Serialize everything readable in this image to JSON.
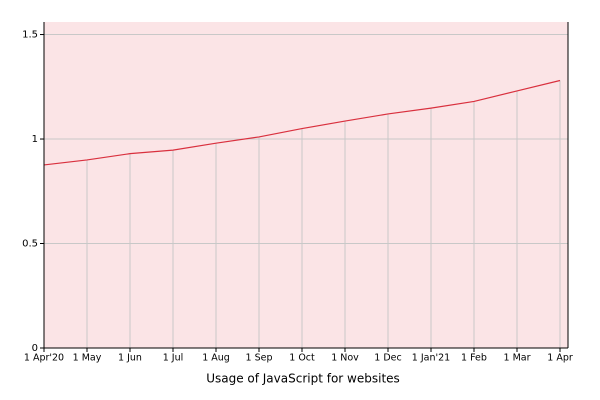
{
  "chart_data": {
    "type": "area",
    "title": "Usage of JavaScript for websites",
    "categories": [
      "1 Apr'20",
      "1 May",
      "1 Jun",
      "1 Jul",
      "1 Aug",
      "1 Sep",
      "1 Oct",
      "1 Nov",
      "1 Dec",
      "1 Jan'21",
      "1 Feb",
      "1 Mar",
      "1 Apr"
    ],
    "values": [
      0.876,
      0.9,
      0.93,
      0.947,
      0.98,
      1.01,
      1.05,
      1.086,
      1.12,
      1.148,
      1.18,
      1.23,
      1.28
    ],
    "color": "#d9303e",
    "fill": "#fbe4e6",
    "ylim": [
      0,
      1.56
    ],
    "yticks": [
      0,
      0.5,
      1,
      1.5
    ],
    "grid": true
  }
}
